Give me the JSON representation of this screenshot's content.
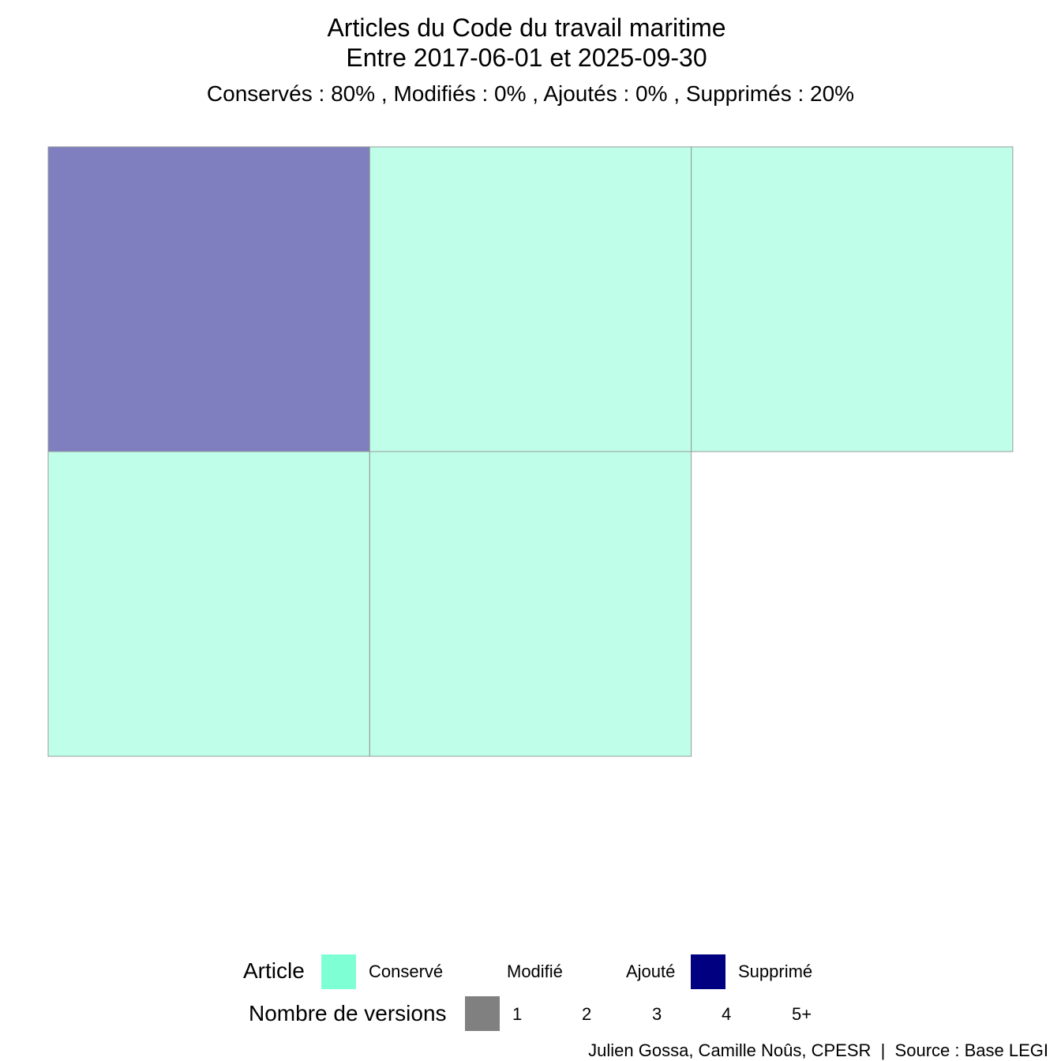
{
  "chart_data": {
    "type": "treemap",
    "title": "Articles du Code du travail maritime",
    "title_line2": "Entre 2017-06-01 et 2025-09-30",
    "subtitle": "Conservés :  80% , Modifiés :  0% , Ajoutés :  0% , Supprimés :  20%",
    "summary": {
      "Conservés": 80,
      "Modifiés": 0,
      "Ajoutés": 0,
      "Supprimés": 20
    },
    "articles": [
      {
        "status": "Supprimé",
        "versions": 1
      },
      {
        "status": "Conservé",
        "versions": 1
      },
      {
        "status": "Conservé",
        "versions": 1
      },
      {
        "status": "Conservé",
        "versions": 1
      },
      {
        "status": "Conservé",
        "versions": 1
      }
    ],
    "colors": {
      "Conservé": "#7FFFD4",
      "Supprimé": "#000080",
      "tile_fill_opacity": 0.5,
      "tile_border": "#999999",
      "versions_swatch": "#808080"
    }
  },
  "legend": {
    "article_title": "Article",
    "article_labels": [
      "Conservé",
      "Modifié",
      "Ajouté",
      "Supprimé"
    ],
    "versions_title": "Nombre de versions",
    "versions_labels": [
      "1",
      "2",
      "3",
      "4",
      "5+"
    ]
  },
  "caption": "Julien Gossa, Camille Noûs, CPESR  |  Source : Base LEGI"
}
